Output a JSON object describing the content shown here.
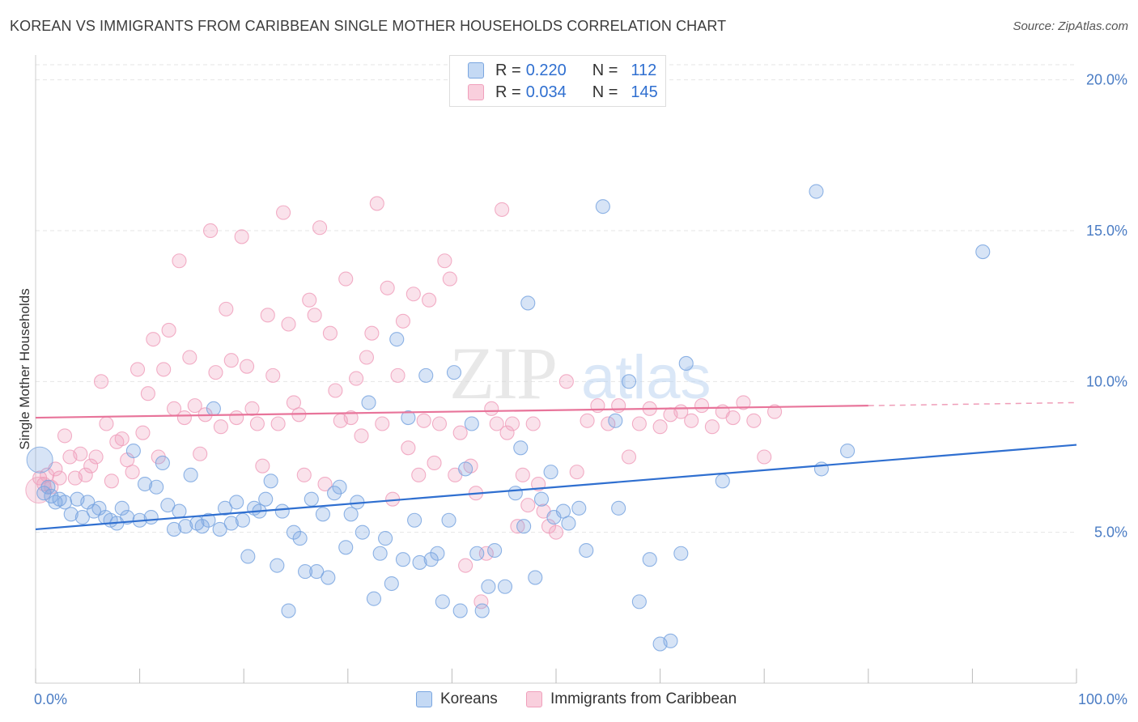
{
  "title": "KOREAN VS IMMIGRANTS FROM CARIBBEAN SINGLE MOTHER HOUSEHOLDS CORRELATION CHART",
  "source": "Source: ZipAtlas.com",
  "watermark": {
    "zip": "ZIP",
    "atlas": "atlas"
  },
  "legend": {
    "rows": [
      {
        "r_label": "R =",
        "r_value": "0.220",
        "n_label": "N =",
        "n_value": "112",
        "color": "#7aa6e0"
      },
      {
        "r_label": "R =",
        "r_value": "0.034",
        "n_label": "N =",
        "n_value": "145",
        "color": "#f0a0bc"
      }
    ]
  },
  "bottom_legend": {
    "koreans": "Koreans",
    "caribbean": "Immigrants from Caribbean"
  },
  "chart_data": {
    "type": "scatter",
    "xlabel": "",
    "ylabel": "Single Mother Households",
    "xlim": [
      0,
      100
    ],
    "ylim": [
      0,
      20.5
    ],
    "x_tick_labels": [
      "0.0%",
      "100.0%"
    ],
    "y_ticks": [
      5,
      10,
      15,
      20
    ],
    "y_tick_labels": [
      "5.0%",
      "10.0%",
      "15.0%",
      "20.0%"
    ],
    "grid": true,
    "series": [
      {
        "name": "Koreans",
        "color": "#7aa6e0",
        "line_color": "#2f6fd0",
        "trend": {
          "x0": 0,
          "y0": 5.1,
          "x1": 100,
          "y1": 7.9,
          "solid_until": 100
        },
        "points": [
          [
            0.8,
            6.3
          ],
          [
            1.2,
            6.5
          ],
          [
            1.5,
            6.2
          ],
          [
            1.9,
            6.0
          ],
          [
            2.3,
            6.1
          ],
          [
            2.8,
            6.0
          ],
          [
            3.4,
            5.6
          ],
          [
            4.0,
            6.1
          ],
          [
            4.5,
            5.5
          ],
          [
            5.0,
            6.0
          ],
          [
            5.6,
            5.7
          ],
          [
            6.1,
            5.8
          ],
          [
            6.7,
            5.5
          ],
          [
            7.2,
            5.4
          ],
          [
            7.8,
            5.3
          ],
          [
            8.3,
            5.8
          ],
          [
            8.8,
            5.5
          ],
          [
            9.4,
            7.7
          ],
          [
            10.0,
            5.4
          ],
          [
            10.5,
            6.6
          ],
          [
            11.1,
            5.5
          ],
          [
            11.6,
            6.5
          ],
          [
            12.2,
            7.3
          ],
          [
            12.7,
            5.9
          ],
          [
            13.3,
            5.1
          ],
          [
            13.8,
            5.7
          ],
          [
            14.4,
            5.2
          ],
          [
            14.9,
            6.9
          ],
          [
            15.5,
            5.3
          ],
          [
            16.0,
            5.2
          ],
          [
            16.6,
            5.4
          ],
          [
            17.1,
            9.1
          ],
          [
            17.7,
            5.1
          ],
          [
            18.2,
            5.8
          ],
          [
            18.8,
            5.3
          ],
          [
            19.3,
            6.0
          ],
          [
            19.9,
            5.4
          ],
          [
            20.4,
            4.2
          ],
          [
            21.0,
            5.8
          ],
          [
            21.5,
            5.7
          ],
          [
            22.1,
            6.1
          ],
          [
            22.6,
            6.7
          ],
          [
            23.2,
            3.9
          ],
          [
            23.7,
            5.7
          ],
          [
            24.3,
            2.4
          ],
          [
            24.8,
            5.0
          ],
          [
            25.4,
            4.8
          ],
          [
            25.9,
            3.7
          ],
          [
            26.5,
            6.1
          ],
          [
            27.0,
            3.7
          ],
          [
            27.6,
            5.6
          ],
          [
            28.1,
            3.5
          ],
          [
            28.7,
            6.3
          ],
          [
            29.2,
            6.5
          ],
          [
            29.8,
            4.5
          ],
          [
            30.3,
            5.6
          ],
          [
            30.9,
            6.0
          ],
          [
            31.4,
            5.0
          ],
          [
            32.0,
            9.3
          ],
          [
            32.5,
            2.8
          ],
          [
            33.1,
            4.3
          ],
          [
            33.6,
            4.8
          ],
          [
            34.2,
            3.3
          ],
          [
            34.7,
            11.4
          ],
          [
            35.3,
            4.1
          ],
          [
            35.8,
            8.8
          ],
          [
            36.4,
            5.4
          ],
          [
            36.9,
            4.0
          ],
          [
            37.5,
            10.2
          ],
          [
            38.0,
            4.1
          ],
          [
            38.6,
            4.3
          ],
          [
            39.1,
            2.7
          ],
          [
            39.7,
            5.4
          ],
          [
            40.2,
            10.3
          ],
          [
            40.8,
            2.4
          ],
          [
            41.3,
            7.1
          ],
          [
            41.9,
            8.6
          ],
          [
            42.4,
            4.3
          ],
          [
            42.9,
            2.4
          ],
          [
            43.5,
            3.2
          ],
          [
            44.1,
            4.4
          ],
          [
            45.1,
            3.2
          ],
          [
            46.1,
            6.3
          ],
          [
            46.6,
            7.8
          ],
          [
            46.9,
            5.2
          ],
          [
            47.3,
            12.6
          ],
          [
            48.0,
            3.5
          ],
          [
            48.6,
            6.1
          ],
          [
            49.5,
            7.0
          ],
          [
            49.8,
            5.5
          ],
          [
            50.7,
            5.7
          ],
          [
            51.2,
            5.3
          ],
          [
            52.2,
            5.8
          ],
          [
            52.9,
            4.4
          ],
          [
            54.5,
            15.8
          ],
          [
            55.7,
            8.7
          ],
          [
            56.0,
            5.8
          ],
          [
            57.0,
            10.0
          ],
          [
            58.0,
            2.7
          ],
          [
            59.0,
            4.1
          ],
          [
            60.0,
            1.3
          ],
          [
            61.0,
            1.4
          ],
          [
            62.0,
            4.3
          ],
          [
            62.5,
            10.6
          ],
          [
            66.0,
            6.7
          ],
          [
            75.0,
            16.3
          ],
          [
            75.5,
            7.1
          ],
          [
            78.0,
            7.7
          ],
          [
            91.0,
            14.3
          ]
        ]
      },
      {
        "name": "Immigrants from Caribbean",
        "color": "#f0a0bc",
        "line_color": "#e8749a",
        "trend": {
          "x0": 0,
          "y0": 8.8,
          "x1": 100,
          "y1": 9.3,
          "solid_until": 80
        },
        "points": [
          [
            0.4,
            6.8
          ],
          [
            0.8,
            6.6
          ],
          [
            1.1,
            6.9
          ],
          [
            1.5,
            6.5
          ],
          [
            1.9,
            7.1
          ],
          [
            2.3,
            6.8
          ],
          [
            2.8,
            8.2
          ],
          [
            3.3,
            7.5
          ],
          [
            3.8,
            6.8
          ],
          [
            4.3,
            7.6
          ],
          [
            4.8,
            6.9
          ],
          [
            5.3,
            7.2
          ],
          [
            5.8,
            7.5
          ],
          [
            6.3,
            10.0
          ],
          [
            6.8,
            8.6
          ],
          [
            7.3,
            6.7
          ],
          [
            7.8,
            8.0
          ],
          [
            8.3,
            8.1
          ],
          [
            8.8,
            7.4
          ],
          [
            9.3,
            7.0
          ],
          [
            9.8,
            10.4
          ],
          [
            10.3,
            8.3
          ],
          [
            10.8,
            9.6
          ],
          [
            11.3,
            11.4
          ],
          [
            11.8,
            7.5
          ],
          [
            12.3,
            10.4
          ],
          [
            12.8,
            11.7
          ],
          [
            13.3,
            9.1
          ],
          [
            13.8,
            14.0
          ],
          [
            14.3,
            8.8
          ],
          [
            14.8,
            10.8
          ],
          [
            15.3,
            9.2
          ],
          [
            15.8,
            7.6
          ],
          [
            16.3,
            8.9
          ],
          [
            16.8,
            15.0
          ],
          [
            17.3,
            10.3
          ],
          [
            17.8,
            8.5
          ],
          [
            18.3,
            12.4
          ],
          [
            18.8,
            10.7
          ],
          [
            19.3,
            8.8
          ],
          [
            19.8,
            14.8
          ],
          [
            20.3,
            10.5
          ],
          [
            20.8,
            9.1
          ],
          [
            21.3,
            8.6
          ],
          [
            21.8,
            7.2
          ],
          [
            22.3,
            12.2
          ],
          [
            22.8,
            10.2
          ],
          [
            23.3,
            8.6
          ],
          [
            23.8,
            15.6
          ],
          [
            24.3,
            11.9
          ],
          [
            24.8,
            9.3
          ],
          [
            25.3,
            8.9
          ],
          [
            25.8,
            6.9
          ],
          [
            26.3,
            12.7
          ],
          [
            26.8,
            12.2
          ],
          [
            27.3,
            15.1
          ],
          [
            27.8,
            6.6
          ],
          [
            28.3,
            11.6
          ],
          [
            28.8,
            9.7
          ],
          [
            29.3,
            8.7
          ],
          [
            29.8,
            13.4
          ],
          [
            30.3,
            8.8
          ],
          [
            30.8,
            10.1
          ],
          [
            31.3,
            8.2
          ],
          [
            31.8,
            10.8
          ],
          [
            32.3,
            11.6
          ],
          [
            32.8,
            15.9
          ],
          [
            33.3,
            8.6
          ],
          [
            33.8,
            13.1
          ],
          [
            34.3,
            6.1
          ],
          [
            34.8,
            10.2
          ],
          [
            35.3,
            12.0
          ],
          [
            35.8,
            7.8
          ],
          [
            36.3,
            12.9
          ],
          [
            36.8,
            6.9
          ],
          [
            37.3,
            8.7
          ],
          [
            37.8,
            12.7
          ],
          [
            38.3,
            7.3
          ],
          [
            38.8,
            8.6
          ],
          [
            39.3,
            14.0
          ],
          [
            39.8,
            13.4
          ],
          [
            40.3,
            6.9
          ],
          [
            40.8,
            8.3
          ],
          [
            41.3,
            3.9
          ],
          [
            41.8,
            7.2
          ],
          [
            42.3,
            6.3
          ],
          [
            42.8,
            2.7
          ],
          [
            43.3,
            4.3
          ],
          [
            43.8,
            9.1
          ],
          [
            44.3,
            8.6
          ],
          [
            44.8,
            15.7
          ],
          [
            45.3,
            8.3
          ],
          [
            45.8,
            8.6
          ],
          [
            46.3,
            5.2
          ],
          [
            46.8,
            6.9
          ],
          [
            47.3,
            5.9
          ],
          [
            47.8,
            8.6
          ],
          [
            48.3,
            6.6
          ],
          [
            48.8,
            5.7
          ],
          [
            49.3,
            5.2
          ],
          [
            50.0,
            5.0
          ],
          [
            51.0,
            10.0
          ],
          [
            52.0,
            7.0
          ],
          [
            53.0,
            8.7
          ],
          [
            54.0,
            9.2
          ],
          [
            55.0,
            8.6
          ],
          [
            56.0,
            9.2
          ],
          [
            57.0,
            7.5
          ],
          [
            58.0,
            8.6
          ],
          [
            59.0,
            9.1
          ],
          [
            60.0,
            8.5
          ],
          [
            61.0,
            8.9
          ],
          [
            62.0,
            9.0
          ],
          [
            63.0,
            8.7
          ],
          [
            64.0,
            9.2
          ],
          [
            65.0,
            8.5
          ],
          [
            66.0,
            9.0
          ],
          [
            67.0,
            8.8
          ],
          [
            68.0,
            9.3
          ],
          [
            69.0,
            8.7
          ],
          [
            70.0,
            7.5
          ],
          [
            71.0,
            9.0
          ]
        ]
      }
    ]
  }
}
